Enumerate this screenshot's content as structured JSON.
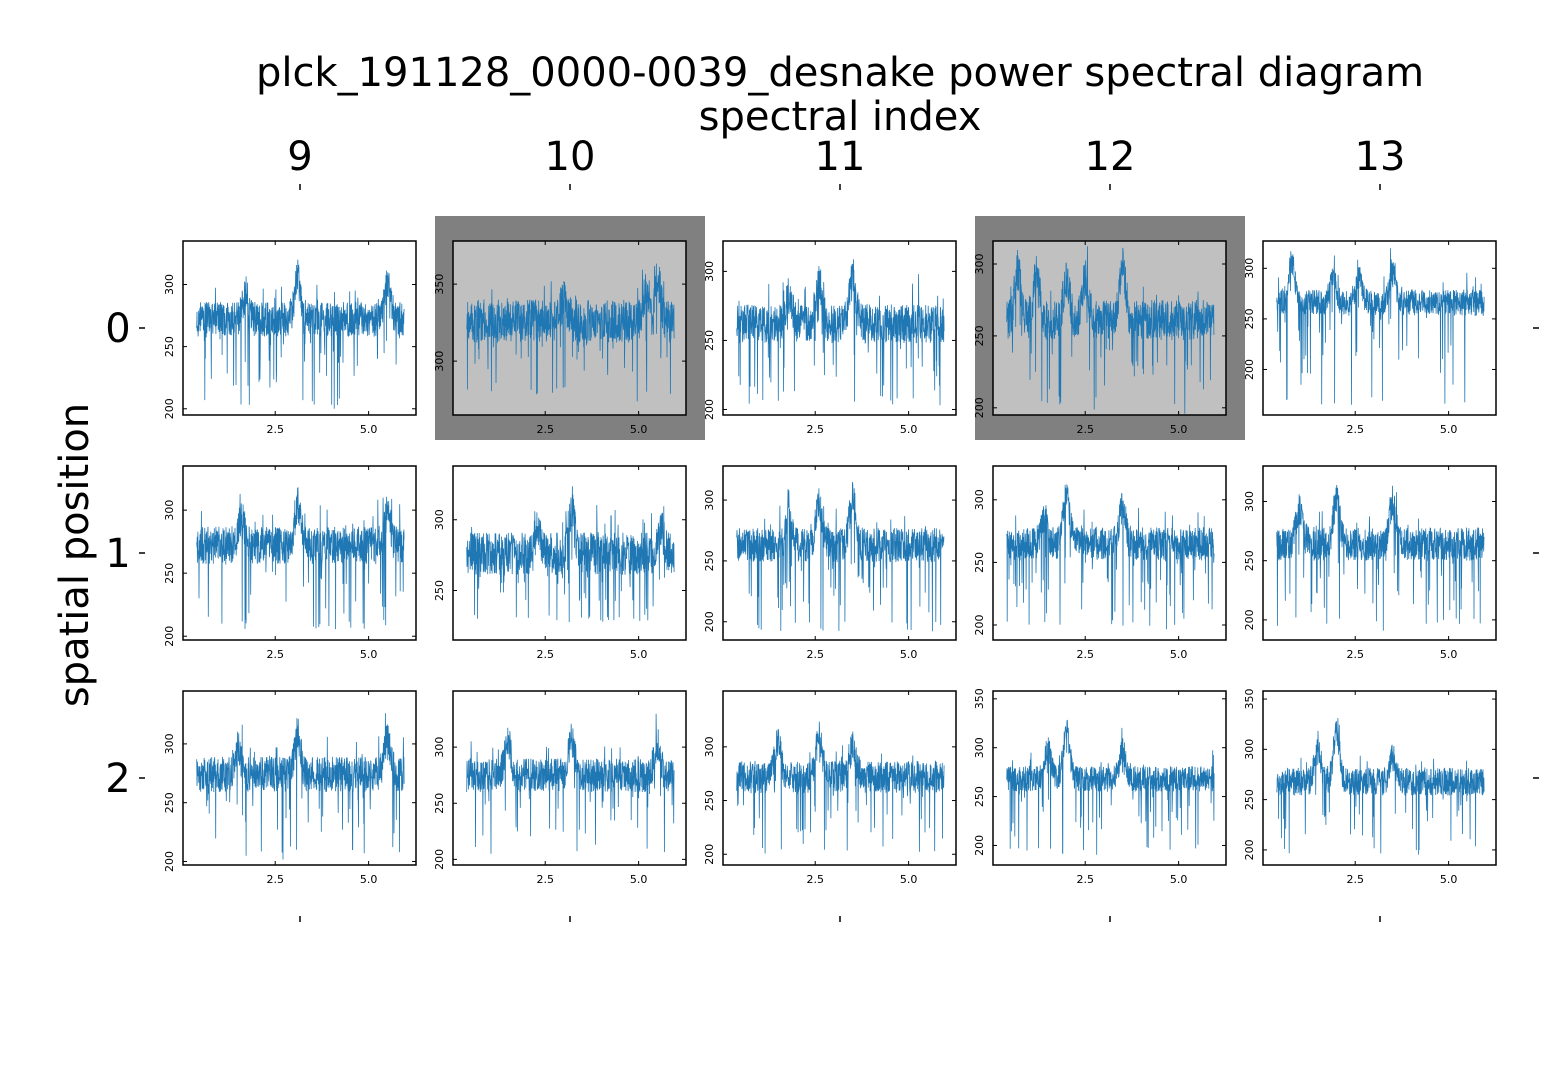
{
  "figure": {
    "title": "plck_191128_0000-0039_desnake power spectral diagram",
    "col_axis_label": "spectral index",
    "row_axis_label": "spatial position",
    "col_labels": [
      "9",
      "10",
      "11",
      "12",
      "13"
    ],
    "row_labels": [
      "0",
      "1",
      "2"
    ],
    "line_color": "#1f77b4",
    "highlight_outer_color": "#808080",
    "highlight_inner_color": "#c0c0c0"
  },
  "chart_data": {
    "type": "line",
    "description_free": true,
    "x_range": [
      0.3,
      6.0
    ],
    "x_ticks": [
      2.5,
      5.0
    ],
    "x_tick_labels": [
      "2.5",
      "5.0"
    ],
    "highlighted_panels": [
      [
        0,
        1
      ],
      [
        0,
        3
      ]
    ],
    "panels": [
      {
        "row": 0,
        "col": 0,
        "ylim": [
          195,
          335
        ],
        "yticks": [
          200,
          250,
          300
        ],
        "baseline": 272,
        "spread": 14,
        "peaks": [
          [
            1.7,
            18
          ],
          [
            3.1,
            32
          ],
          [
            5.5,
            28
          ]
        ],
        "dips": [
          200,
          203
        ]
      },
      {
        "row": 0,
        "col": 1,
        "ylim": [
          265,
          378
        ],
        "yticks": [
          300,
          350
        ],
        "baseline": 326,
        "spread": 14,
        "peaks": [
          [
            3.0,
            14
          ],
          [
            5.2,
            20
          ],
          [
            5.5,
            30
          ]
        ],
        "dips": [
          278,
          280
        ]
      },
      {
        "row": 0,
        "col": 2,
        "ylim": [
          196,
          322
        ],
        "yticks": [
          200,
          250,
          300
        ],
        "baseline": 262,
        "spread": 14,
        "peaks": [
          [
            1.8,
            20
          ],
          [
            2.6,
            30
          ],
          [
            3.5,
            38
          ]
        ],
        "dips": [
          203,
          205
        ]
      },
      {
        "row": 0,
        "col": 3,
        "ylim": [
          195,
          316
        ],
        "yticks": [
          200,
          250,
          300
        ],
        "baseline": 261,
        "spread": 14,
        "peaks": [
          [
            0.7,
            35
          ],
          [
            1.2,
            32
          ],
          [
            2.0,
            28
          ],
          [
            2.5,
            28
          ],
          [
            3.5,
            38
          ]
        ],
        "dips": [
          200,
          202
        ]
      },
      {
        "row": 0,
        "col": 4,
        "ylim": [
          155,
          327
        ],
        "yticks": [
          200,
          250,
          300
        ],
        "baseline": 266,
        "spread": 13,
        "peaks": [
          [
            0.8,
            40
          ],
          [
            1.9,
            25
          ],
          [
            2.6,
            26
          ],
          [
            3.5,
            28
          ]
        ],
        "dips": [
          165,
          180
        ]
      },
      {
        "row": 1,
        "col": 0,
        "ylim": [
          197,
          335
        ],
        "yticks": [
          200,
          250,
          300
        ],
        "baseline": 272,
        "spread": 15,
        "peaks": [
          [
            1.6,
            20
          ],
          [
            3.1,
            32
          ],
          [
            5.5,
            26
          ]
        ],
        "dips": [
          205,
          208
        ]
      },
      {
        "row": 1,
        "col": 1,
        "ylim": [
          215,
          338
        ],
        "yticks": [
          250,
          300
        ],
        "baseline": 276,
        "spread": 15,
        "peaks": [
          [
            2.3,
            18
          ],
          [
            3.2,
            32
          ],
          [
            5.6,
            16
          ]
        ],
        "dips": [
          225,
          228
        ]
      },
      {
        "row": 1,
        "col": 2,
        "ylim": [
          185,
          328
        ],
        "yticks": [
          200,
          250,
          300
        ],
        "baseline": 263,
        "spread": 14,
        "peaks": [
          [
            1.8,
            20
          ],
          [
            2.6,
            35
          ],
          [
            3.5,
            38
          ]
        ],
        "dips": [
          192,
          195
        ]
      },
      {
        "row": 1,
        "col": 3,
        "ylim": [
          188,
          327
        ],
        "yticks": [
          200,
          250,
          300
        ],
        "baseline": 265,
        "spread": 13,
        "peaks": [
          [
            1.4,
            22
          ],
          [
            2.0,
            40
          ],
          [
            3.5,
            30
          ]
        ],
        "dips": [
          195,
          198
        ]
      },
      {
        "row": 1,
        "col": 4,
        "ylim": [
          183,
          330
        ],
        "yticks": [
          200,
          250,
          300
        ],
        "baseline": 264,
        "spread": 14,
        "peaks": [
          [
            1.0,
            30
          ],
          [
            2.0,
            38
          ],
          [
            3.5,
            36
          ]
        ],
        "dips": [
          195,
          197
        ]
      },
      {
        "row": 2,
        "col": 0,
        "ylim": [
          197,
          345
        ],
        "yticks": [
          200,
          250,
          300
        ],
        "baseline": 274,
        "spread": 15,
        "peaks": [
          [
            1.5,
            22
          ],
          [
            3.1,
            34
          ],
          [
            5.5,
            30
          ]
        ],
        "dips": [
          205,
          208
        ]
      },
      {
        "row": 2,
        "col": 1,
        "ylim": [
          195,
          350
        ],
        "yticks": [
          200,
          250,
          300
        ],
        "baseline": 275,
        "spread": 15,
        "peaks": [
          [
            1.5,
            30
          ],
          [
            3.2,
            32
          ],
          [
            5.5,
            26
          ]
        ],
        "dips": [
          205,
          210
        ]
      },
      {
        "row": 2,
        "col": 2,
        "ylim": [
          190,
          352
        ],
        "yticks": [
          200,
          250,
          300
        ],
        "baseline": 272,
        "spread": 15,
        "peaks": [
          [
            1.5,
            34
          ],
          [
            2.6,
            38
          ],
          [
            3.5,
            28
          ]
        ],
        "dips": [
          200,
          205
        ]
      },
      {
        "row": 2,
        "col": 3,
        "ylim": [
          180,
          358
        ],
        "yticks": [
          200,
          250,
          300,
          350
        ],
        "baseline": 268,
        "spread": 13,
        "peaks": [
          [
            1.5,
            30
          ],
          [
            2.0,
            50
          ],
          [
            3.5,
            30
          ]
        ],
        "dips": [
          190,
          195
        ]
      },
      {
        "row": 2,
        "col": 4,
        "ylim": [
          185,
          358
        ],
        "yticks": [
          200,
          250,
          300,
          350
        ],
        "baseline": 268,
        "spread": 14,
        "peaks": [
          [
            1.5,
            30
          ],
          [
            2.0,
            50
          ],
          [
            3.5,
            24
          ]
        ],
        "dips": [
          195,
          198
        ]
      }
    ]
  }
}
